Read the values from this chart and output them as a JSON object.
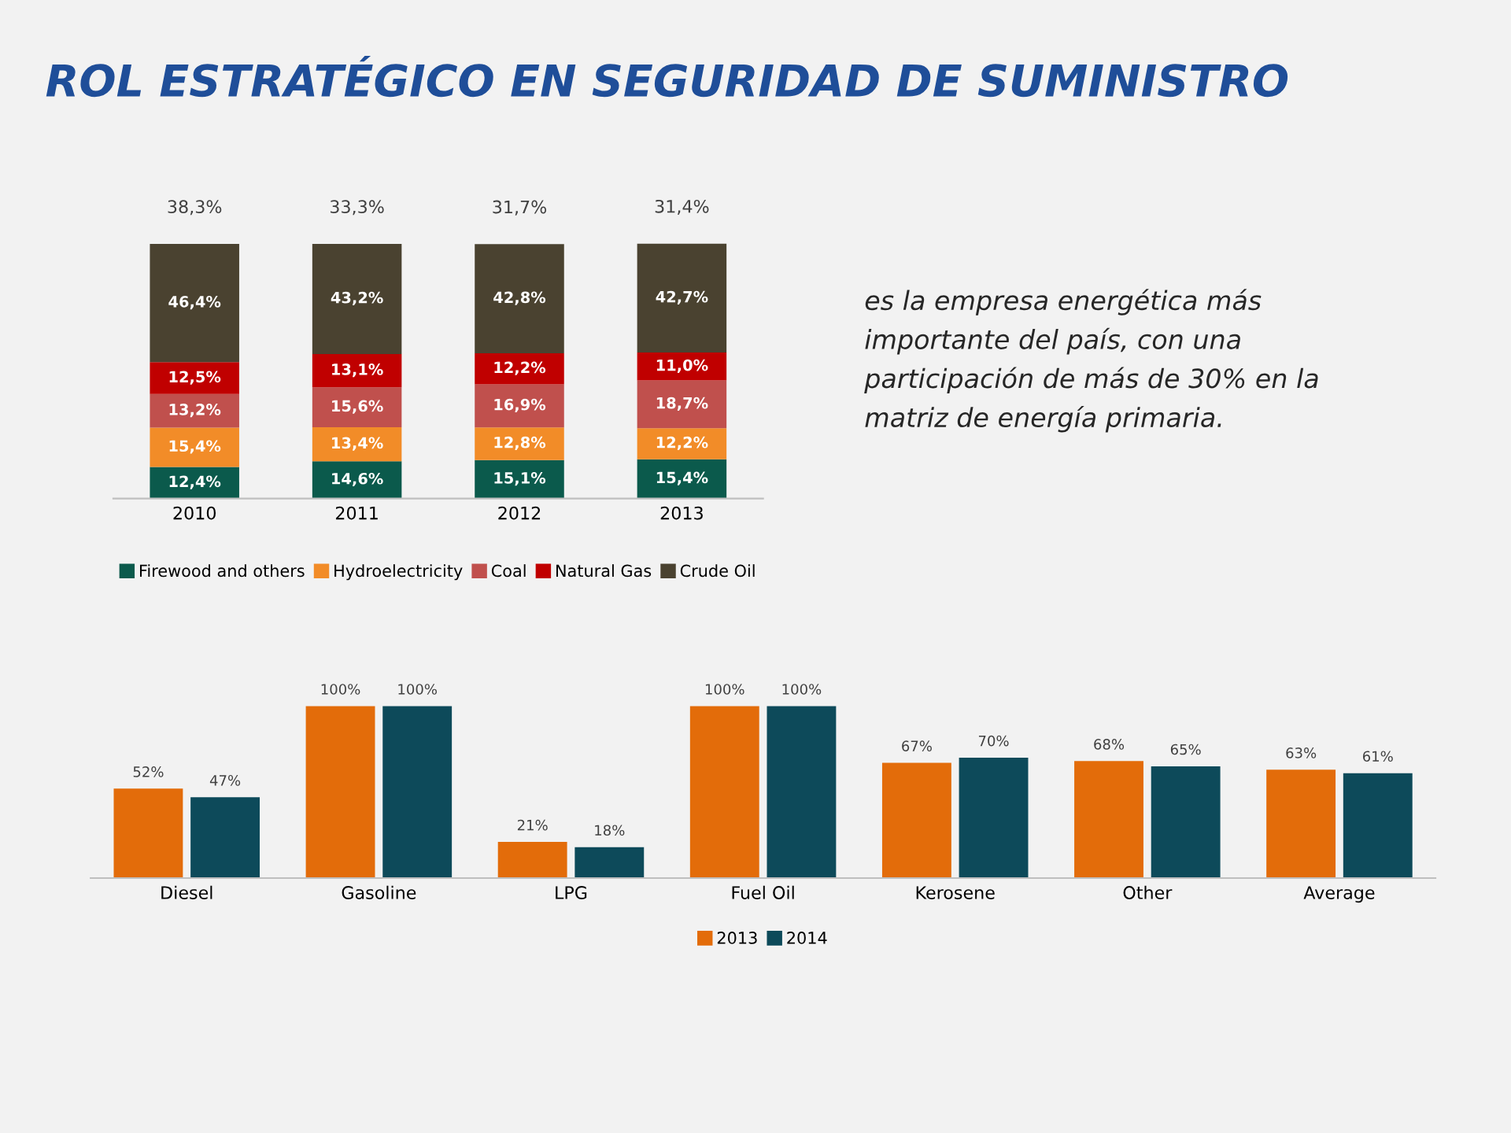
{
  "chart_data": [
    {
      "type": "bar",
      "title": "ROL ESTRATÉGICO EN SEGURIDAD DE SUMINISTRO",
      "stacked": true,
      "legend": "bottom",
      "categories": [
        "2010",
        "2011",
        "2012",
        "2013"
      ],
      "series": [
        {
          "name": "Firewood and others",
          "color": "#0b5a4c",
          "values": [
            12.4,
            14.6,
            15.1,
            15.4
          ],
          "value_labels": [
            "12,4%",
            "14,6%",
            "15,1%",
            "15,4%"
          ]
        },
        {
          "name": "Hydroelectricity",
          "color": "#f28c28",
          "values": [
            15.4,
            13.4,
            12.8,
            12.2
          ],
          "value_labels": [
            "15,4%",
            "13,4%",
            "12,8%",
            "12,2%"
          ]
        },
        {
          "name": "Coal",
          "color": "#c0504d",
          "values": [
            13.2,
            15.6,
            16.9,
            18.7
          ],
          "value_labels": [
            "13,2%",
            "15,6%",
            "16,9%",
            "18,7%"
          ]
        },
        {
          "name": "Natural Gas",
          "color": "#c00000",
          "values": [
            12.5,
            13.1,
            12.2,
            11.0
          ],
          "value_labels": [
            "12,5%",
            "13,1%",
            "12,2%",
            "11,0%"
          ]
        },
        {
          "name": "Crude Oil",
          "color": "#4a4230",
          "values": [
            46.4,
            43.2,
            42.8,
            42.7
          ],
          "value_labels": [
            "46,4%",
            "43,2%",
            "42,8%",
            "42,7%"
          ]
        }
      ],
      "annotations": [
        "38,3%",
        "33,3%",
        "31,7%",
        "31,4%",
        "es la empresa energética más importante del país, con una participación de más de 30% en la matriz de energía primaria."
      ]
    },
    {
      "type": "bar",
      "legend": "bottom",
      "categories": [
        "Diesel",
        "Gasoline",
        "LPG",
        "Fuel Oil",
        "Kerosene",
        "Other",
        "Average"
      ],
      "series": [
        {
          "name": "2013",
          "color": "#e36c0a",
          "values": [
            52,
            100,
            21,
            100,
            67,
            68,
            63
          ],
          "value_labels": [
            "52%",
            "100%",
            "21%",
            "100%",
            "67%",
            "68%",
            "63%"
          ]
        },
        {
          "name": "2014",
          "color": "#0d4a5a",
          "values": [
            47,
            100,
            18,
            100,
            70,
            65,
            61
          ],
          "value_labels": [
            "47%",
            "100%",
            "18%",
            "100%",
            "70%",
            "65%",
            "61%"
          ]
        }
      ]
    }
  ]
}
